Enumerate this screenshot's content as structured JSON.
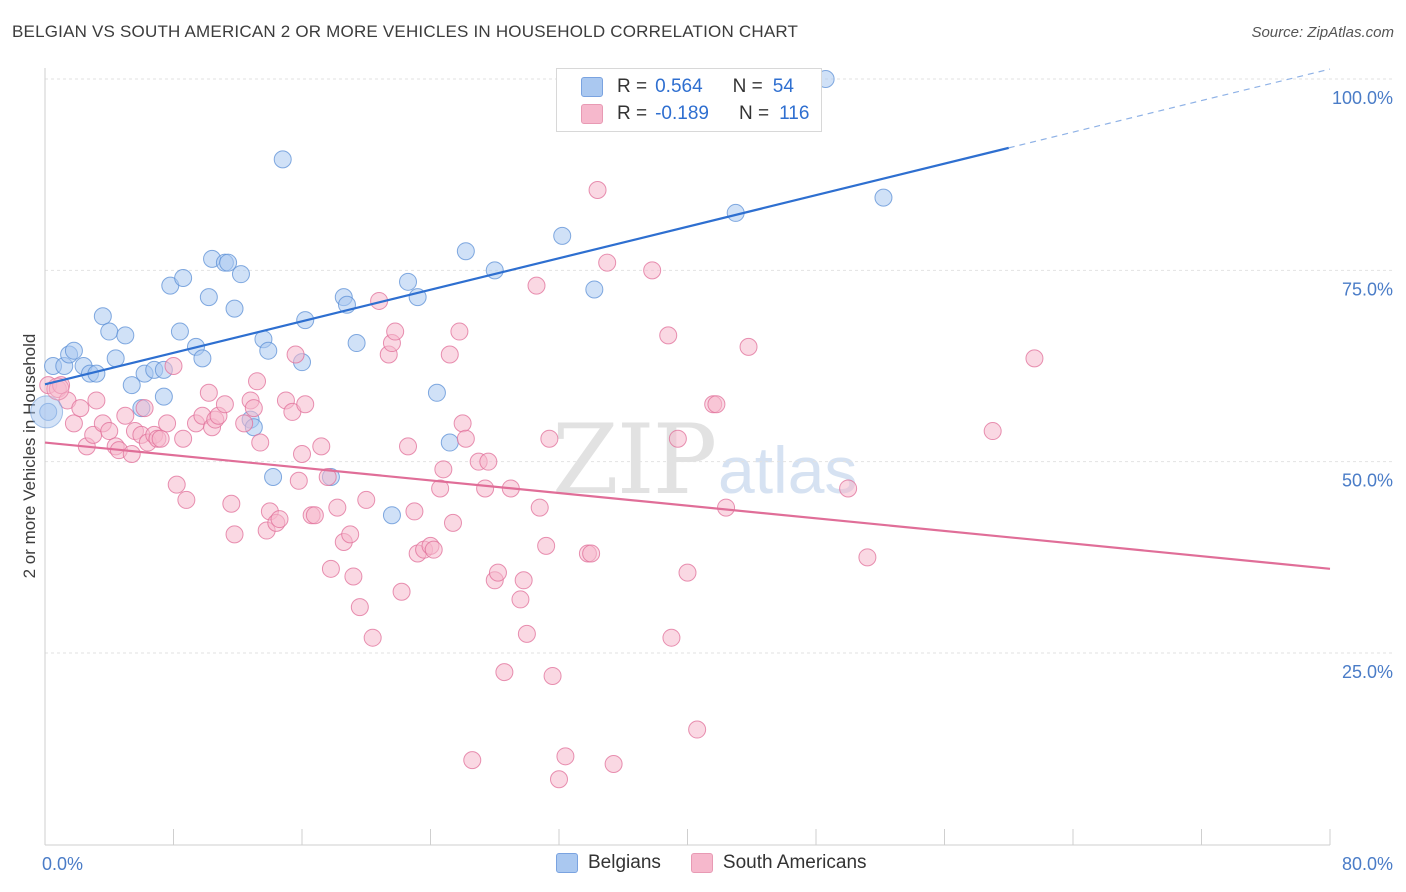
{
  "header": {
    "title": "BELGIAN VS SOUTH AMERICAN 2 OR MORE VEHICLES IN HOUSEHOLD CORRELATION CHART",
    "source": "Source: ZipAtlas.com"
  },
  "watermark": {
    "zip": "ZIP",
    "atlas": "atlas"
  },
  "legend": {
    "rows": [
      {
        "r_label": "R =",
        "r_value": "0.564",
        "n_label": "N =",
        "n_value": "54",
        "color": "#aac8f0"
      },
      {
        "r_label": "R =",
        "r_value": "-0.189",
        "n_label": "N =",
        "n_value": "116",
        "color": "#f6b8cc"
      }
    ]
  },
  "bottom_legend": {
    "items": [
      {
        "label": "Belgians",
        "color": "#aac8f0"
      },
      {
        "label": "South Americans",
        "color": "#f6b8cc"
      }
    ]
  },
  "chart_data": {
    "type": "scatter",
    "title": "BELGIAN VS SOUTH AMERICAN 2 OR MORE VEHICLES IN HOUSEHOLD CORRELATION CHART",
    "ylabel": "2 or more Vehicles in Household",
    "xlabel": "",
    "xlim": [
      0,
      80
    ],
    "ylim": [
      0,
      102
    ],
    "x_tick_labels": [
      "0.0%",
      "80.0%"
    ],
    "y_ticks": [
      25,
      50,
      75,
      100
    ],
    "y_tick_labels": [
      "25.0%",
      "50.0%",
      "75.0%",
      "100.0%"
    ],
    "grid": true,
    "legend_placement": "top-center",
    "series": [
      {
        "name": "Belgians",
        "color": "#5b8fd6",
        "fill": "#aac8f0",
        "trend": {
          "x": [
            0,
            60
          ],
          "y": [
            60.1,
            91.0
          ],
          "dashed_to": [
            80,
            101.3
          ]
        },
        "points": [
          [
            0.2,
            56.5
          ],
          [
            0.5,
            62.5
          ],
          [
            1.2,
            62.5
          ],
          [
            1.5,
            64.0
          ],
          [
            1.8,
            64.5
          ],
          [
            2.4,
            62.5
          ],
          [
            2.8,
            61.5
          ],
          [
            3.2,
            61.5
          ],
          [
            3.6,
            69.0
          ],
          [
            4.0,
            67.0
          ],
          [
            4.4,
            63.5
          ],
          [
            5.0,
            66.5
          ],
          [
            5.4,
            60.0
          ],
          [
            6.0,
            57.0
          ],
          [
            6.2,
            61.5
          ],
          [
            6.8,
            62.0
          ],
          [
            7.4,
            62.0
          ],
          [
            7.4,
            58.5
          ],
          [
            7.8,
            73.0
          ],
          [
            8.4,
            67.0
          ],
          [
            8.6,
            74.0
          ],
          [
            9.4,
            65.0
          ],
          [
            9.8,
            63.5
          ],
          [
            10.2,
            71.5
          ],
          [
            10.4,
            76.5
          ],
          [
            11.2,
            76.0
          ],
          [
            11.4,
            76.0
          ],
          [
            11.8,
            70.0
          ],
          [
            12.2,
            74.5
          ],
          [
            12.8,
            55.5
          ],
          [
            13.0,
            54.5
          ],
          [
            13.6,
            66.0
          ],
          [
            13.9,
            64.5
          ],
          [
            14.2,
            48.0
          ],
          [
            14.8,
            89.5
          ],
          [
            16.0,
            63.0
          ],
          [
            16.2,
            68.5
          ],
          [
            17.8,
            48.0
          ],
          [
            18.6,
            71.5
          ],
          [
            18.8,
            70.5
          ],
          [
            19.4,
            65.5
          ],
          [
            21.6,
            43.0
          ],
          [
            22.6,
            73.5
          ],
          [
            23.2,
            71.5
          ],
          [
            24.4,
            59.0
          ],
          [
            25.2,
            52.5
          ],
          [
            26.2,
            77.5
          ],
          [
            28.0,
            75.0
          ],
          [
            32.2,
            79.5
          ],
          [
            34.2,
            72.5
          ],
          [
            43.0,
            82.5
          ],
          [
            48.6,
            100.0
          ],
          [
            52.2,
            84.5
          ],
          [
            40.0,
            100.0
          ]
        ]
      },
      {
        "name": "South Americans",
        "color": "#e06e98",
        "fill": "#f6b8cc",
        "trend": {
          "x": [
            0,
            80
          ],
          "y": [
            52.5,
            36.0
          ]
        },
        "points": [
          [
            0.2,
            60.0
          ],
          [
            0.8,
            59.5
          ],
          [
            1.0,
            60.0
          ],
          [
            1.4,
            58.0
          ],
          [
            1.8,
            55.0
          ],
          [
            2.2,
            57.0
          ],
          [
            2.6,
            52.0
          ],
          [
            3.0,
            53.5
          ],
          [
            3.2,
            58.0
          ],
          [
            3.6,
            55.0
          ],
          [
            4.0,
            54.0
          ],
          [
            4.4,
            52.0
          ],
          [
            4.6,
            51.5
          ],
          [
            5.0,
            56.0
          ],
          [
            5.4,
            51.0
          ],
          [
            5.6,
            54.0
          ],
          [
            6.0,
            53.5
          ],
          [
            6.2,
            57.0
          ],
          [
            6.4,
            52.5
          ],
          [
            6.8,
            53.5
          ],
          [
            7.0,
            53.0
          ],
          [
            7.2,
            53.0
          ],
          [
            7.6,
            55.0
          ],
          [
            8.0,
            62.5
          ],
          [
            8.2,
            47.0
          ],
          [
            8.6,
            53.0
          ],
          [
            8.8,
            45.0
          ],
          [
            9.4,
            55.0
          ],
          [
            9.8,
            56.0
          ],
          [
            10.2,
            59.0
          ],
          [
            10.4,
            54.5
          ],
          [
            10.6,
            55.5
          ],
          [
            10.8,
            56.0
          ],
          [
            11.2,
            57.5
          ],
          [
            11.6,
            44.5
          ],
          [
            11.8,
            40.5
          ],
          [
            12.4,
            55.0
          ],
          [
            12.8,
            58.0
          ],
          [
            13.0,
            57.0
          ],
          [
            13.2,
            60.5
          ],
          [
            13.4,
            52.5
          ],
          [
            13.8,
            41.0
          ],
          [
            14.0,
            43.5
          ],
          [
            14.4,
            42.0
          ],
          [
            14.6,
            42.5
          ],
          [
            15.0,
            58.0
          ],
          [
            15.4,
            56.5
          ],
          [
            15.6,
            64.0
          ],
          [
            15.8,
            47.5
          ],
          [
            16.0,
            51.0
          ],
          [
            16.2,
            57.5
          ],
          [
            16.6,
            43.0
          ],
          [
            16.8,
            43.0
          ],
          [
            17.2,
            52.0
          ],
          [
            17.6,
            48.0
          ],
          [
            17.8,
            36.0
          ],
          [
            18.2,
            44.0
          ],
          [
            18.6,
            39.5
          ],
          [
            19.0,
            40.5
          ],
          [
            19.2,
            35.0
          ],
          [
            19.6,
            31.0
          ],
          [
            20.0,
            45.0
          ],
          [
            20.4,
            27.0
          ],
          [
            20.8,
            71.0
          ],
          [
            21.4,
            64.0
          ],
          [
            21.6,
            65.5
          ],
          [
            21.8,
            67.0
          ],
          [
            22.2,
            33.0
          ],
          [
            22.6,
            52.0
          ],
          [
            23.0,
            43.5
          ],
          [
            23.2,
            38.0
          ],
          [
            23.6,
            38.5
          ],
          [
            24.0,
            39.0
          ],
          [
            24.2,
            38.5
          ],
          [
            24.6,
            46.5
          ],
          [
            24.8,
            49.0
          ],
          [
            25.2,
            64.0
          ],
          [
            25.4,
            42.0
          ],
          [
            25.8,
            67.0
          ],
          [
            26.0,
            55.0
          ],
          [
            26.2,
            53.0
          ],
          [
            26.6,
            11.0
          ],
          [
            27.0,
            50.0
          ],
          [
            27.4,
            46.5
          ],
          [
            27.6,
            50.0
          ],
          [
            28.0,
            34.5
          ],
          [
            28.2,
            35.5
          ],
          [
            28.6,
            22.5
          ],
          [
            29.0,
            46.5
          ],
          [
            29.6,
            32.0
          ],
          [
            29.8,
            34.5
          ],
          [
            30.0,
            27.5
          ],
          [
            30.6,
            73.0
          ],
          [
            30.8,
            44.0
          ],
          [
            31.2,
            39.0
          ],
          [
            31.4,
            53.0
          ],
          [
            31.6,
            22.0
          ],
          [
            32.0,
            8.5
          ],
          [
            32.4,
            11.5
          ],
          [
            33.8,
            38.0
          ],
          [
            34.0,
            38.0
          ],
          [
            34.4,
            85.5
          ],
          [
            35.0,
            76.0
          ],
          [
            35.4,
            10.5
          ],
          [
            37.8,
            75.0
          ],
          [
            38.8,
            66.5
          ],
          [
            39.0,
            27.0
          ],
          [
            39.4,
            53.0
          ],
          [
            40.0,
            35.5
          ],
          [
            40.6,
            15.0
          ],
          [
            41.6,
            57.5
          ],
          [
            41.8,
            57.5
          ],
          [
            42.4,
            44.0
          ],
          [
            43.8,
            65.0
          ],
          [
            50.0,
            46.5
          ],
          [
            51.2,
            37.5
          ],
          [
            59.0,
            54.0
          ],
          [
            61.6,
            63.5
          ]
        ]
      }
    ]
  }
}
